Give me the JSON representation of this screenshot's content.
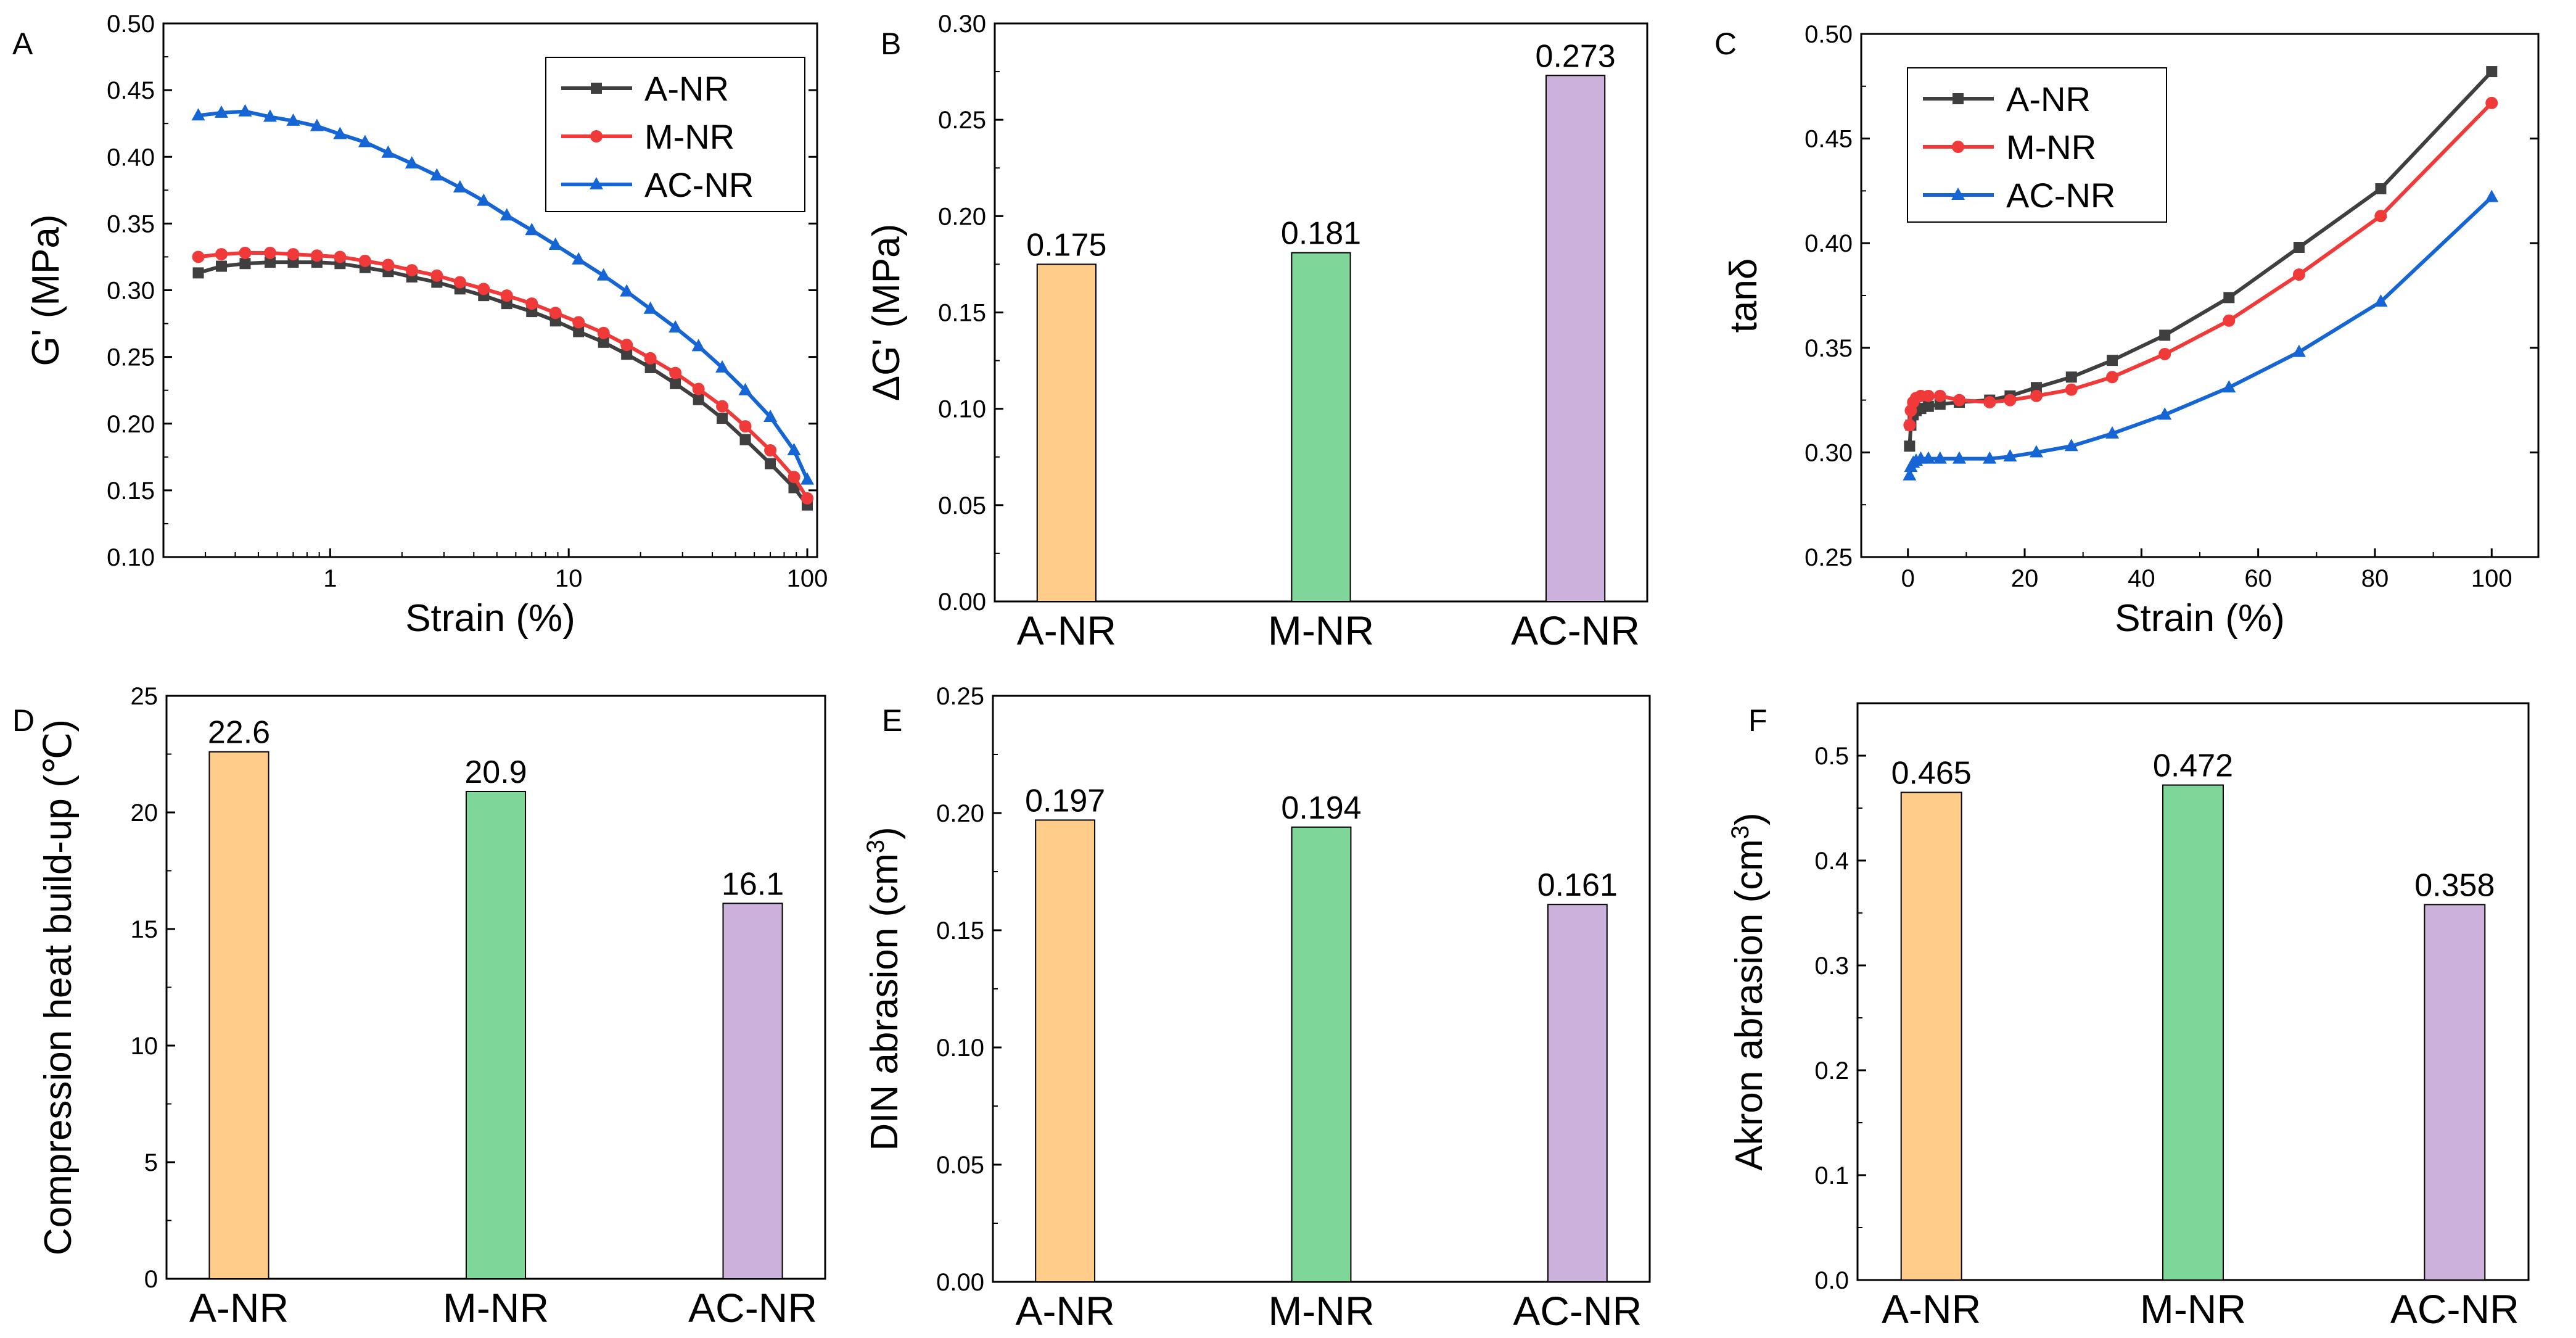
{
  "figure_title": "",
  "colors": {
    "A": "#3f3f3f",
    "M": "#f03a3a",
    "AC": "#1565d4"
  },
  "chart_data": [
    {
      "panel": "A",
      "type": "line",
      "xscale": "log",
      "xlabel": "Strain (%)",
      "ylabel": "G' (MPa)",
      "xlim": [
        0.2,
        110
      ],
      "ylim": [
        0.1,
        0.5
      ],
      "xticks": [
        1,
        10,
        100
      ],
      "xtick_labels": [
        "1",
        "10",
        "100"
      ],
      "yticks": [
        0.1,
        0.15,
        0.2,
        0.25,
        0.3,
        0.35,
        0.4,
        0.45,
        0.5
      ],
      "ytick_labels": [
        "0.10",
        "0.15",
        "0.20",
        "0.25",
        "0.30",
        "0.35",
        "0.40",
        "0.45",
        "0.50"
      ],
      "legend": "top-right",
      "series": [
        {
          "name": "A-NR",
          "color": "#3f3f3f",
          "marker": "square",
          "x": [
            0.28,
            0.35,
            0.44,
            0.56,
            0.7,
            0.88,
            1.1,
            1.4,
            1.75,
            2.2,
            2.8,
            3.5,
            4.4,
            5.5,
            7,
            8.8,
            11,
            14,
            17.5,
            22,
            28,
            35,
            44,
            55,
            70,
            88,
            100
          ],
          "y": [
            0.313,
            0.318,
            0.32,
            0.321,
            0.321,
            0.321,
            0.32,
            0.317,
            0.314,
            0.31,
            0.306,
            0.301,
            0.296,
            0.29,
            0.284,
            0.277,
            0.269,
            0.261,
            0.252,
            0.242,
            0.23,
            0.218,
            0.204,
            0.188,
            0.17,
            0.152,
            0.139
          ]
        },
        {
          "name": "M-NR",
          "color": "#f03a3a",
          "marker": "circle",
          "x": [
            0.28,
            0.35,
            0.44,
            0.56,
            0.7,
            0.88,
            1.1,
            1.4,
            1.75,
            2.2,
            2.8,
            3.5,
            4.4,
            5.5,
            7,
            8.8,
            11,
            14,
            17.5,
            22,
            28,
            35,
            44,
            55,
            70,
            88,
            100
          ],
          "y": [
            0.325,
            0.327,
            0.328,
            0.328,
            0.327,
            0.326,
            0.325,
            0.322,
            0.319,
            0.315,
            0.311,
            0.306,
            0.301,
            0.296,
            0.29,
            0.283,
            0.276,
            0.268,
            0.259,
            0.249,
            0.238,
            0.226,
            0.213,
            0.198,
            0.18,
            0.16,
            0.144
          ]
        },
        {
          "name": "AC-NR",
          "color": "#1565d4",
          "marker": "triangle",
          "x": [
            0.28,
            0.35,
            0.44,
            0.56,
            0.7,
            0.88,
            1.1,
            1.4,
            1.75,
            2.2,
            2.8,
            3.5,
            4.4,
            5.5,
            7,
            8.8,
            11,
            14,
            17.5,
            22,
            28,
            35,
            44,
            55,
            70,
            88,
            100
          ],
          "y": [
            0.431,
            0.433,
            0.434,
            0.43,
            0.427,
            0.423,
            0.417,
            0.411,
            0.403,
            0.395,
            0.386,
            0.377,
            0.367,
            0.356,
            0.345,
            0.334,
            0.323,
            0.311,
            0.299,
            0.286,
            0.272,
            0.258,
            0.242,
            0.225,
            0.205,
            0.18,
            0.158
          ]
        }
      ]
    },
    {
      "panel": "B",
      "type": "bar",
      "ylabel": "ΔG' (MPa)",
      "ylim": [
        0,
        0.3
      ],
      "yticks": [
        0,
        0.05,
        0.1,
        0.15,
        0.2,
        0.25,
        0.3
      ],
      "ytick_labels": [
        "0.00",
        "0.05",
        "0.10",
        "0.15",
        "0.20",
        "0.25",
        "0.30"
      ],
      "categories": [
        "A-NR",
        "M-NR",
        "AC-NR"
      ],
      "values": [
        0.175,
        0.181,
        0.273
      ],
      "value_labels": [
        "0.175",
        "0.181",
        "0.273"
      ],
      "bar_colors": [
        "#ffcc8a",
        "#7ed699",
        "#cbb1db"
      ]
    },
    {
      "panel": "C",
      "type": "line",
      "xlabel": "Strain (%)",
      "ylabel": "tanδ",
      "xlim": [
        -8,
        108
      ],
      "ylim": [
        0.25,
        0.5
      ],
      "xticks": [
        0,
        20,
        40,
        60,
        80,
        100
      ],
      "xtick_labels": [
        "0",
        "20",
        "40",
        "60",
        "80",
        "100"
      ],
      "yticks": [
        0.25,
        0.3,
        0.35,
        0.4,
        0.45,
        0.5
      ],
      "ytick_labels": [
        "0.25",
        "0.30",
        "0.35",
        "0.40",
        "0.45",
        "0.50"
      ],
      "legend": "top-left",
      "series": [
        {
          "name": "A-NR",
          "color": "#3f3f3f",
          "marker": "square",
          "x": [
            0.28,
            0.5,
            0.9,
            1.4,
            2.2,
            3.5,
            5.5,
            8.8,
            14,
            17.5,
            22,
            28,
            35,
            44,
            55,
            67,
            81,
            100
          ],
          "y": [
            0.303,
            0.313,
            0.318,
            0.32,
            0.321,
            0.322,
            0.323,
            0.324,
            0.325,
            0.327,
            0.331,
            0.336,
            0.344,
            0.356,
            0.374,
            0.398,
            0.426,
            0.482
          ]
        },
        {
          "name": "M-NR",
          "color": "#f03a3a",
          "marker": "circle",
          "x": [
            0.28,
            0.5,
            0.9,
            1.4,
            2.2,
            3.5,
            5.5,
            8.8,
            14,
            17.5,
            22,
            28,
            35,
            44,
            55,
            67,
            81,
            100
          ],
          "y": [
            0.313,
            0.32,
            0.324,
            0.326,
            0.327,
            0.327,
            0.327,
            0.325,
            0.324,
            0.325,
            0.327,
            0.33,
            0.336,
            0.347,
            0.363,
            0.385,
            0.413,
            0.467
          ]
        },
        {
          "name": "AC-NR",
          "color": "#1565d4",
          "marker": "triangle",
          "x": [
            0.28,
            0.5,
            0.9,
            1.4,
            2.2,
            3.5,
            5.5,
            8.8,
            14,
            17.5,
            22,
            28,
            35,
            44,
            55,
            67,
            81,
            100
          ],
          "y": [
            0.289,
            0.293,
            0.295,
            0.296,
            0.297,
            0.297,
            0.297,
            0.297,
            0.297,
            0.298,
            0.3,
            0.303,
            0.309,
            0.318,
            0.331,
            0.348,
            0.372,
            0.422
          ]
        }
      ]
    },
    {
      "panel": "D",
      "type": "bar",
      "ylabel": "Compression heat build-up (℃)",
      "ylim": [
        0,
        25
      ],
      "yticks": [
        0,
        5,
        10,
        15,
        20,
        25
      ],
      "ytick_labels": [
        "0",
        "5",
        "10",
        "15",
        "20",
        "25"
      ],
      "categories": [
        "A-NR",
        "M-NR",
        "AC-NR"
      ],
      "values": [
        22.6,
        20.9,
        16.1
      ],
      "value_labels": [
        "22.6",
        "20.9",
        "16.1"
      ],
      "bar_colors": [
        "#ffcc8a",
        "#7ed699",
        "#cbb1db"
      ]
    },
    {
      "panel": "E",
      "type": "bar",
      "ylabel": "DIN abrasion (cm",
      "ylabel_sup": "3",
      "ylabel_end": ")",
      "ylim": [
        0,
        0.25
      ],
      "yticks": [
        0,
        0.05,
        0.1,
        0.15,
        0.2,
        0.25
      ],
      "ytick_labels": [
        "0.00",
        "0.05",
        "0.10",
        "0.15",
        "0.20",
        "0.25"
      ],
      "categories": [
        "A-NR",
        "M-NR",
        "AC-NR"
      ],
      "values": [
        0.197,
        0.194,
        0.161
      ],
      "value_labels": [
        "0.197",
        "0.194",
        "0.161"
      ],
      "bar_colors": [
        "#ffcc8a",
        "#7ed699",
        "#cbb1db"
      ]
    },
    {
      "panel": "F",
      "type": "bar",
      "ylabel": "Akron abrasion (cm",
      "ylabel_sup": "3",
      "ylabel_end": ")",
      "ylim": [
        0,
        0.55
      ],
      "yticks": [
        0,
        0.1,
        0.2,
        0.3,
        0.4,
        0.5
      ],
      "ytick_labels": [
        "0.0",
        "0.1",
        "0.2",
        "0.3",
        "0.4",
        "0.5"
      ],
      "categories": [
        "A-NR",
        "M-NR",
        "AC-NR"
      ],
      "values": [
        0.465,
        0.472,
        0.358
      ],
      "value_labels": [
        "0.465",
        "0.472",
        "0.358"
      ],
      "bar_colors": [
        "#ffcc8a",
        "#7ed699",
        "#cbb1db"
      ]
    }
  ]
}
